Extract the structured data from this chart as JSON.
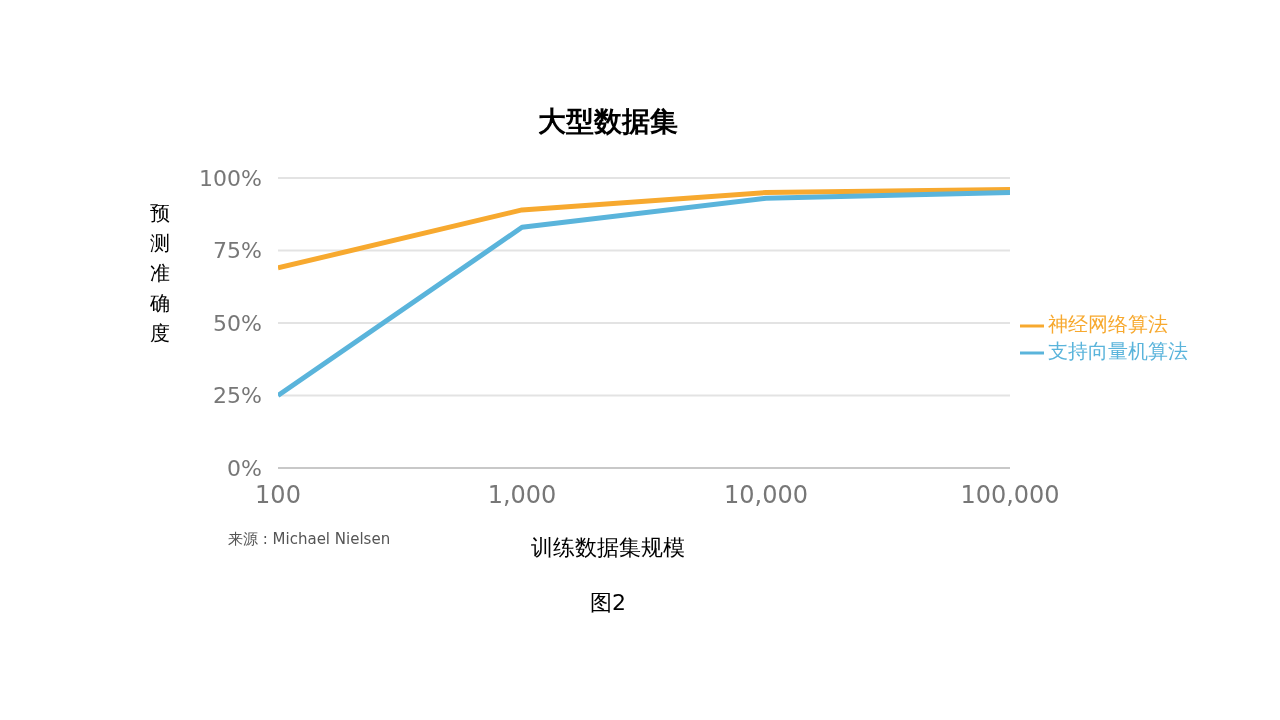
{
  "chart_data": {
    "type": "line",
    "title": "大型数据集",
    "xlabel": "训练数据集规模",
    "ylabel": "预测准确度",
    "x": [
      100,
      1000,
      10000,
      100000
    ],
    "series": [
      {
        "name": "神经网络算法",
        "color": "#f7a92f",
        "values": [
          69,
          89,
          95,
          96
        ]
      },
      {
        "name": "支持向量机算法",
        "color": "#5ab4db",
        "values": [
          25,
          83,
          93,
          95
        ]
      }
    ],
    "log": "x",
    "xlim": [
      100,
      100000
    ],
    "xticks": [
      {
        "value": 100,
        "label": "100"
      },
      {
        "value": 1000,
        "label": "1,000"
      },
      {
        "value": 10000,
        "label": "10,000"
      },
      {
        "value": 100000,
        "label": "100,000"
      }
    ],
    "ylim": [
      0,
      100
    ],
    "yticks": [
      {
        "value": 0,
        "label": "0%"
      },
      {
        "value": 25,
        "label": "25%"
      },
      {
        "value": 50,
        "label": "50%"
      },
      {
        "value": 75,
        "label": "75%"
      },
      {
        "value": 100,
        "label": "100%"
      }
    ],
    "grid": "y",
    "legend": "right",
    "marker": "none",
    "line_style": "solid",
    "annotations": [
      "来源 : Michael Nielsen",
      "图2"
    ]
  }
}
